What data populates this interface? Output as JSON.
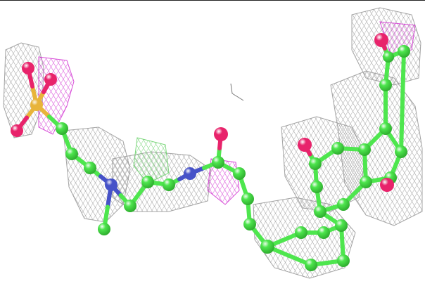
{
  "scene": {
    "subject": "molecular-structure-with-density-mesh",
    "colors": {
      "background": "#ffffff",
      "carbon": "#4ee64e",
      "carbon_dark": "#2fae2f",
      "oxygen": "#e8236b",
      "nitrogen": "#4652c8",
      "sulfur": "#e8b43a",
      "mesh": "#9a9a9a",
      "mesh_magenta": "#d43bd4",
      "mesh_green": "#6fd36f"
    }
  }
}
